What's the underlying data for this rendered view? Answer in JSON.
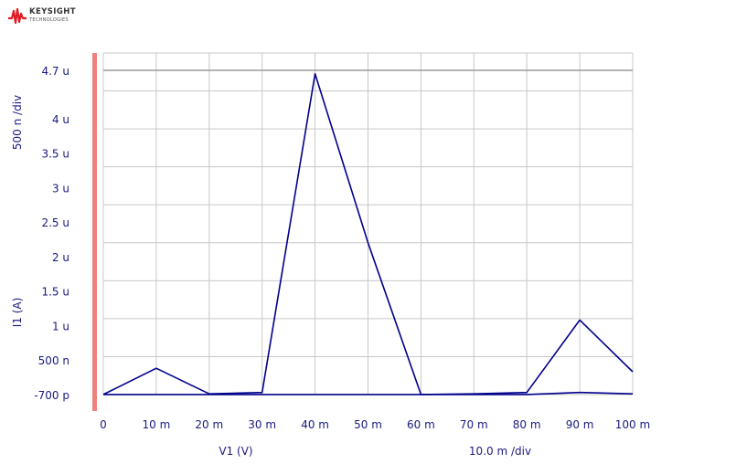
{
  "logo": {
    "name": "KEYSIGHT",
    "sub": "TECHNOLOGIES"
  },
  "chart_data": {
    "type": "line",
    "xlabel": "V1 (V)",
    "ylabel": "I1 (A)",
    "x_scale": "10.0 m /div",
    "y_scale": "500 n /div",
    "xlim": [
      0,
      0.1
    ],
    "ylim": [
      -7e-10,
      4.7e-06
    ],
    "grid": true,
    "x_ticks": [
      {
        "v": 0,
        "label": "0"
      },
      {
        "v": 0.01,
        "label": "10 m"
      },
      {
        "v": 0.02,
        "label": "20 m"
      },
      {
        "v": 0.03,
        "label": "30 m"
      },
      {
        "v": 0.04,
        "label": "40 m"
      },
      {
        "v": 0.05,
        "label": "50 m"
      },
      {
        "v": 0.06,
        "label": "60 m"
      },
      {
        "v": 0.07,
        "label": "70 m"
      },
      {
        "v": 0.08,
        "label": "80 m"
      },
      {
        "v": 0.09,
        "label": "90 m"
      },
      {
        "v": 0.1,
        "label": "100 m"
      }
    ],
    "y_ticks": [
      {
        "v": -7e-10,
        "label": "-700 p"
      },
      {
        "v": 5e-07,
        "label": "500 n"
      },
      {
        "v": 1e-06,
        "label": "1 u"
      },
      {
        "v": 1.5e-06,
        "label": "1.5 u"
      },
      {
        "v": 2e-06,
        "label": "2 u"
      },
      {
        "v": 2.5e-06,
        "label": "2.5 u"
      },
      {
        "v": 3e-06,
        "label": "3 u"
      },
      {
        "v": 3.5e-06,
        "label": "3.5 u"
      },
      {
        "v": 4e-06,
        "label": "4 u"
      },
      {
        "v": 4.7e-06,
        "label": "4.7 u"
      }
    ],
    "series": [
      {
        "color": "#00008b",
        "x": [
          0,
          0.01,
          0.02,
          0.03,
          0.04,
          0.05,
          0.06,
          0.07,
          0.08,
          0.09,
          0.1
        ],
        "y": [
          0,
          3.8e-07,
          1e-08,
          3e-08,
          4.65e-06,
          2.2e-06,
          0,
          1e-08,
          3e-08,
          1.08e-06,
          3.3e-07
        ]
      },
      {
        "color": "#00008b",
        "x": [
          0,
          0.01,
          0.02,
          0.03,
          0.04,
          0.05,
          0.06,
          0.07,
          0.08,
          0.09,
          0.1
        ],
        "y": [
          0,
          0,
          0,
          0,
          0,
          0,
          0,
          0,
          0,
          3e-08,
          1e-08
        ]
      }
    ]
  }
}
